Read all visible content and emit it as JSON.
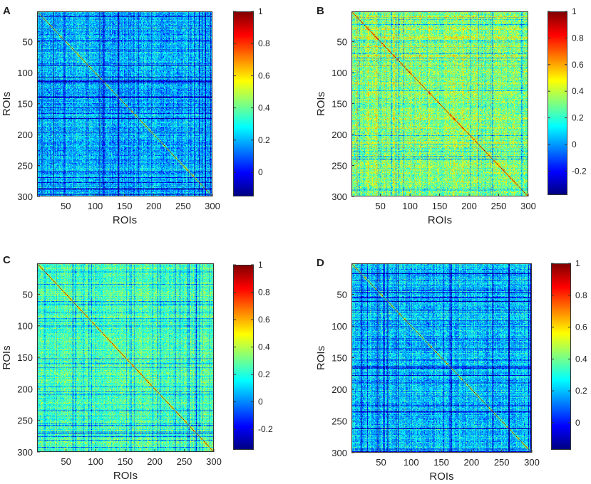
{
  "chart_data": [
    {
      "type": "heatmap",
      "panel_label": "A",
      "xlabel": "ROIs",
      "ylabel": "ROIs",
      "x_ticks": [
        "50",
        "100",
        "150",
        "200",
        "250",
        "300"
      ],
      "y_ticks": [
        "50",
        "100",
        "150",
        "200",
        "250",
        "300"
      ],
      "size": 300,
      "xlim": [
        1,
        300
      ],
      "ylim": [
        1,
        300
      ],
      "colormap": "jet",
      "clim": [
        -0.15,
        1
      ],
      "colorbar_ticks": [
        "0",
        "0.2",
        "0.4",
        "0.6",
        "0.8",
        "1"
      ],
      "colorbar_values": [
        0,
        0.2,
        0.4,
        0.6,
        0.8,
        1
      ],
      "typical_offdiag_value": 0.2,
      "diagonal_value": 1
    },
    {
      "type": "heatmap",
      "panel_label": "B",
      "xlabel": "ROIs",
      "ylabel": "ROIs",
      "x_ticks": [
        "50",
        "100",
        "150",
        "200",
        "250",
        "300"
      ],
      "y_ticks": [
        "50",
        "100",
        "150",
        "200",
        "250",
        "300"
      ],
      "size": 300,
      "xlim": [
        1,
        300
      ],
      "ylim": [
        1,
        300
      ],
      "colormap": "jet",
      "clim": [
        -0.38,
        1
      ],
      "colorbar_ticks": [
        "-0.2",
        "0",
        "0.2",
        "0.4",
        "0.6",
        "0.8",
        "1"
      ],
      "colorbar_values": [
        -0.2,
        0,
        0.2,
        0.4,
        0.6,
        0.8,
        1
      ],
      "typical_offdiag_value": 0.3,
      "diagonal_value": 1
    },
    {
      "type": "heatmap",
      "panel_label": "C",
      "xlabel": "ROIs",
      "ylabel": "ROIs",
      "x_ticks": [
        "50",
        "100",
        "150",
        "200",
        "250",
        "300"
      ],
      "y_ticks": [
        "50",
        "100",
        "150",
        "200",
        "250",
        "300"
      ],
      "size": 300,
      "xlim": [
        1,
        300
      ],
      "ylim": [
        1,
        300
      ],
      "colormap": "jet",
      "clim": [
        -0.35,
        1
      ],
      "colorbar_ticks": [
        "-0.2",
        "0",
        "0.2",
        "0.4",
        "0.6",
        "0.8",
        "1"
      ],
      "colorbar_values": [
        -0.2,
        0,
        0.2,
        0.4,
        0.6,
        0.8,
        1
      ],
      "typical_offdiag_value": 0.25,
      "diagonal_value": 1
    },
    {
      "type": "heatmap",
      "panel_label": "D",
      "xlabel": "ROIs",
      "ylabel": "ROIs",
      "x_ticks": [
        "50",
        "100",
        "150",
        "200",
        "250",
        "300"
      ],
      "y_ticks": [
        "50",
        "100",
        "150",
        "200",
        "250",
        "300"
      ],
      "size": 300,
      "xlim": [
        1,
        300
      ],
      "ylim": [
        1,
        300
      ],
      "colormap": "jet",
      "clim": [
        -0.17,
        1
      ],
      "colorbar_ticks": [
        "0",
        "0.2",
        "0.4",
        "0.6",
        "0.8",
        "1"
      ],
      "colorbar_values": [
        0,
        0.2,
        0.4,
        0.6,
        0.8,
        1
      ],
      "typical_offdiag_value": 0.2,
      "diagonal_value": 1
    }
  ]
}
